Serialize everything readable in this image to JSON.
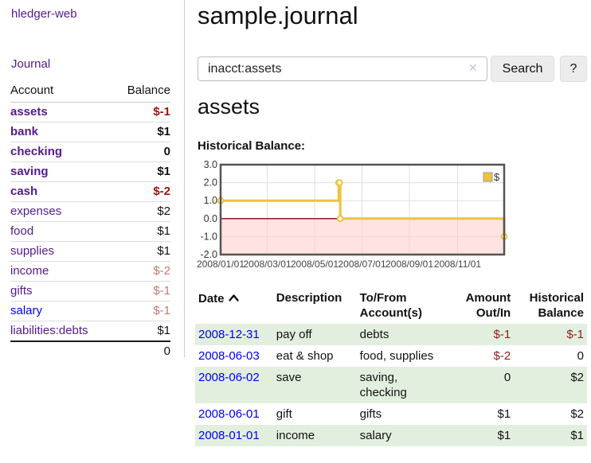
{
  "colors": {
    "link_purple": "#551a8b",
    "link_blue": "#0000ee",
    "negative_strong": "#a11212",
    "negative_faded": "#c47878",
    "negative_table": "#8f2020",
    "row_stripe_green": "#e2efdf",
    "chart_line": "#edc240",
    "chart_negative_fill": "#ffcccc",
    "chart_zero_line": "#8b0000",
    "chart_grid": "#e0e0e0",
    "chart_border": "#545454"
  },
  "app_title": "hledger-web",
  "sidebar": {
    "journal_link": "Journal",
    "account_header": "Account",
    "balance_header": "Balance",
    "accounts": [
      {
        "name": "assets",
        "balance": "$-1",
        "depth": 1,
        "bold": true,
        "balance_style": "neg-strong"
      },
      {
        "name": "bank",
        "balance": "$1",
        "depth": 2,
        "bold": true,
        "balance_style": ""
      },
      {
        "name": "checking",
        "balance": "0",
        "depth": 3,
        "bold": true,
        "balance_style": ""
      },
      {
        "name": "saving",
        "balance": "$1",
        "depth": 3,
        "bold": true,
        "balance_style": ""
      },
      {
        "name": "cash",
        "balance": "$-2",
        "depth": 2,
        "bold": true,
        "balance_style": "neg-strong"
      },
      {
        "name": "expenses",
        "balance": "$2",
        "depth": 1,
        "bold": false,
        "balance_style": ""
      },
      {
        "name": "food",
        "balance": "$1",
        "depth": 2,
        "bold": false,
        "balance_style": ""
      },
      {
        "name": "supplies",
        "balance": "$1",
        "depth": 2,
        "bold": false,
        "balance_style": ""
      },
      {
        "name": "income",
        "balance": "$-2",
        "depth": 1,
        "bold": false,
        "balance_style": "neg-faded"
      },
      {
        "name": "gifts",
        "balance": "$-1",
        "depth": 2,
        "bold": false,
        "balance_style": "neg-faded"
      },
      {
        "name": "salary",
        "balance": "$-1",
        "depth": 2,
        "bold": false,
        "balance_style": "neg-faded",
        "link_color": "blue"
      },
      {
        "name": "liabilities:debts",
        "balance": "$1",
        "depth": 1,
        "bold": false,
        "balance_style": ""
      }
    ],
    "total": "0"
  },
  "main": {
    "title": "sample.journal",
    "search": {
      "value": "inacct:assets",
      "clear_label": "✕",
      "search_button": "Search",
      "help_button": "?"
    },
    "account_title": "assets",
    "chart_title": "Historical Balance:"
  },
  "chart_data": {
    "type": "line",
    "step": true,
    "title": "Historical Balance",
    "legend": {
      "label": "$",
      "position": "top-right"
    },
    "x_range_days": [
      0,
      365
    ],
    "y_range": [
      -2,
      3
    ],
    "y_ticks": [
      3.0,
      2.0,
      1.0,
      0.0,
      -1.0,
      -2.0
    ],
    "x_ticks": [
      {
        "label": "2008/01/01",
        "day": 0
      },
      {
        "label": "2008/03/01",
        "day": 60
      },
      {
        "label": "2008/05/01",
        "day": 121
      },
      {
        "label": "2008/07/01",
        "day": 182
      },
      {
        "label": "2008/09/01",
        "day": 243
      },
      {
        "label": "2008/11/01",
        "day": 305
      }
    ],
    "negative_region_below": 0,
    "series": [
      {
        "name": "$",
        "points": [
          {
            "date": "2008-01-01",
            "day": 0,
            "value": 1
          },
          {
            "date": "2008-06-01",
            "day": 152,
            "value": 2
          },
          {
            "date": "2008-06-02",
            "day": 153,
            "value": 2
          },
          {
            "date": "2008-06-03",
            "day": 154,
            "value": 0
          },
          {
            "date": "2008-12-31",
            "day": 365,
            "value": -1
          }
        ]
      }
    ]
  },
  "register": {
    "headers": {
      "date": "Date",
      "description": "Description",
      "account_line1": "To/From",
      "account_line2": "Account(s)",
      "amount_line1": "Amount",
      "amount_line2": "Out/In",
      "balance_line1": "Historical",
      "balance_line2": "Balance"
    },
    "rows": [
      {
        "date": "2008-12-31",
        "description": "pay off",
        "accounts": "debts",
        "amount": "$-1",
        "amount_neg": true,
        "balance": "$-1",
        "balance_neg": true
      },
      {
        "date": "2008-06-03",
        "description": "eat & shop",
        "accounts": "food, supplies",
        "amount": "$-2",
        "amount_neg": true,
        "balance": "0",
        "balance_neg": false
      },
      {
        "date": "2008-06-02",
        "description": "save",
        "accounts": "saving, checking",
        "amount": "0",
        "amount_neg": false,
        "balance": "$2",
        "balance_neg": false
      },
      {
        "date": "2008-06-01",
        "description": "gift",
        "accounts": "gifts",
        "amount": "$1",
        "amount_neg": false,
        "balance": "$2",
        "balance_neg": false
      },
      {
        "date": "2008-01-01",
        "description": "income",
        "accounts": "salary",
        "amount": "$1",
        "amount_neg": false,
        "balance": "$1",
        "balance_neg": false
      }
    ]
  }
}
